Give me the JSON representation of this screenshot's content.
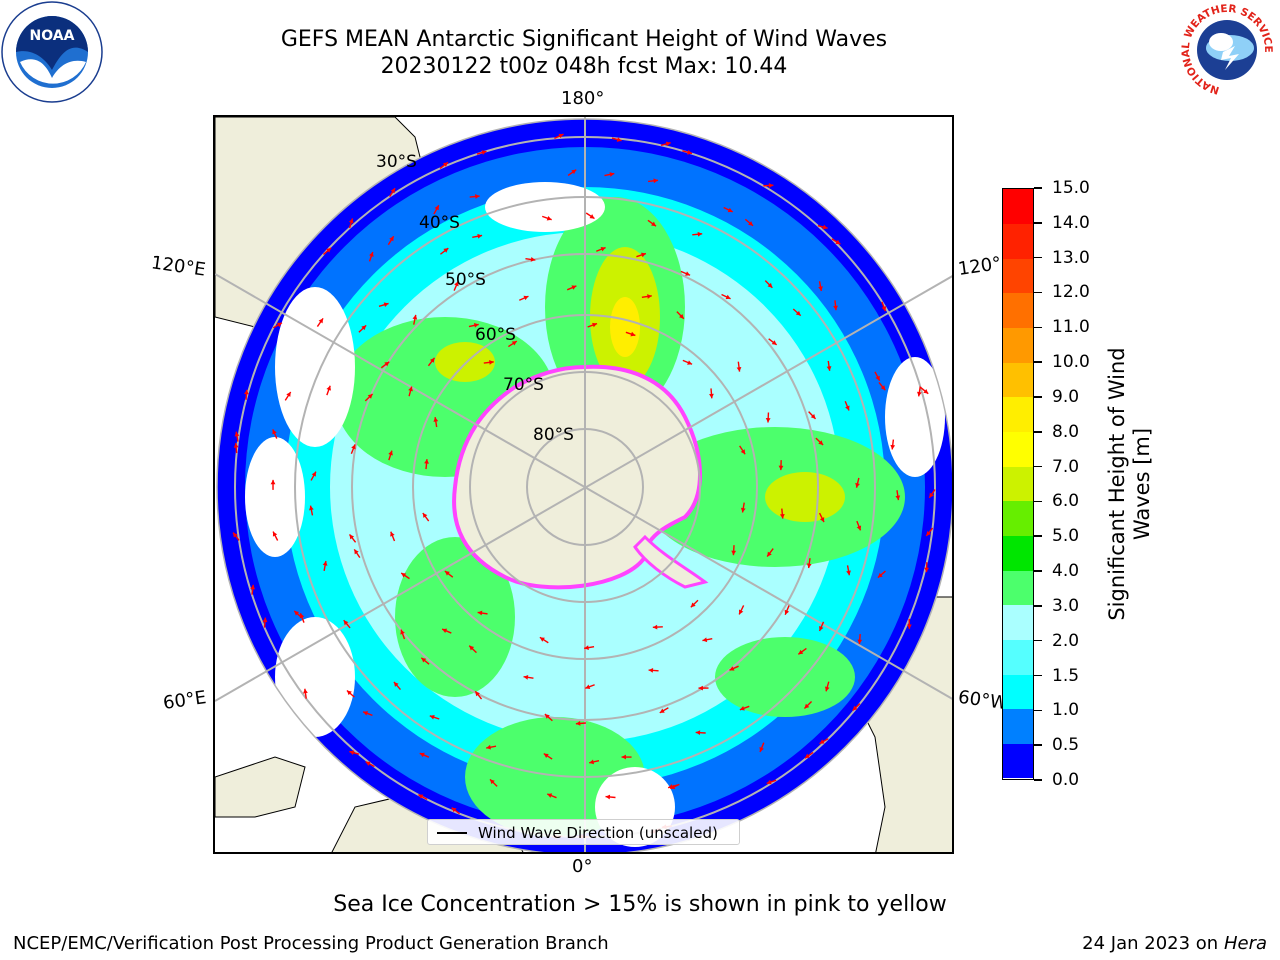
{
  "title_line1": "GEFS MEAN Antarctic Significant Height of Wind Waves",
  "title_line2": "20230122 t00z 048h fcst   Max: 10.44",
  "longitude_labels": {
    "top": "180°",
    "bottom": "0°",
    "upper_left": "120°E",
    "upper_right": "120°",
    "lower_left": "60°E",
    "lower_right": "60°W"
  },
  "latitude_labels": [
    "30°S",
    "40°S",
    "50°S",
    "60°S",
    "70°S",
    "80°S"
  ],
  "legend_text": "Wind Wave Direction (unscaled)",
  "colorbar": {
    "title_line1": "Significant Height of Wind",
    "title_line2": "Waves [m]",
    "tick_labels": [
      "15.0",
      "14.0",
      "13.0",
      "12.0",
      "11.0",
      "10.0",
      "9.0",
      "8.0",
      "7.0",
      "6.0",
      "5.0",
      "4.0",
      "3.0",
      "2.0",
      "1.5",
      "1.0",
      "0.5",
      "0.0"
    ],
    "colors": [
      "#0000ff",
      "#0080ff",
      "#00ffff",
      "#55ffff",
      "#aaffff",
      "#4cff6c",
      "#00e600",
      "#66ee00",
      "#ccf200",
      "#ffff00",
      "#ffee00",
      "#ffc000",
      "#ff9900",
      "#ff7000",
      "#ff4400",
      "#ff2200",
      "#ff0000"
    ]
  },
  "bottom_note": "Sea Ice Concentration > 15% is shown in pink to yellow",
  "footer_left": "NCEP/EMC/Verification Post Processing Product Generation Branch",
  "footer_date": "24 Jan 2023 on",
  "footer_host": "Hera",
  "logos": {
    "noaa_text": "NOAA",
    "nws_ring_text": "NATIONAL WEATHER SERVICE"
  },
  "colors": {
    "land": "#efeedb",
    "graticule": "#b3b3b3",
    "arrow": "#ff0000",
    "ice": "#ff44ff"
  }
}
